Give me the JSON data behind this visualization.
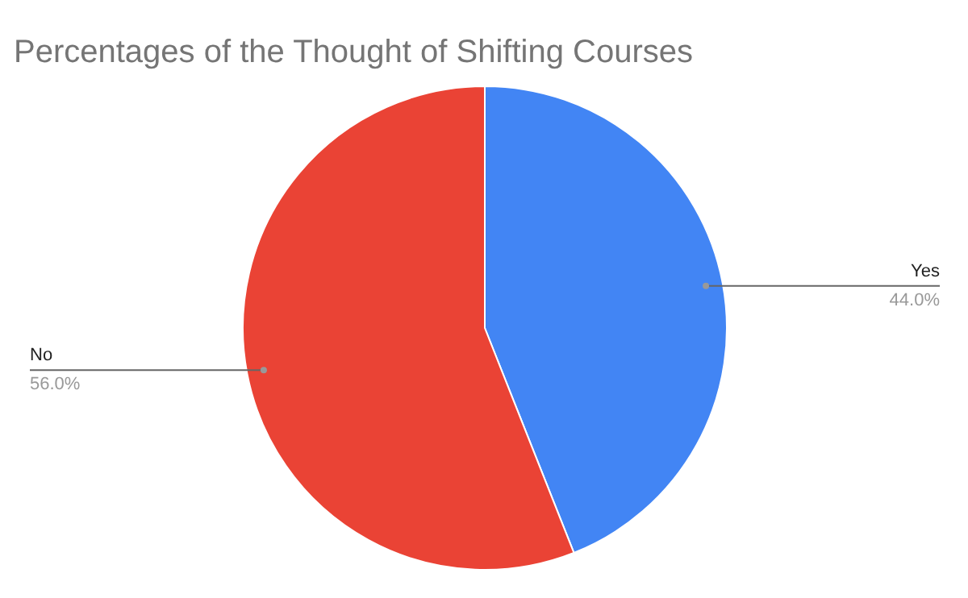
{
  "chart_data": {
    "type": "pie",
    "title": "Percentages of the Thought of Shifting Courses",
    "categories": [
      "Yes",
      "No"
    ],
    "values": [
      44.0,
      56.0
    ],
    "colors": [
      "#4285f4",
      "#ea4335"
    ],
    "value_labels": [
      "44.0%",
      "56.0%"
    ]
  }
}
